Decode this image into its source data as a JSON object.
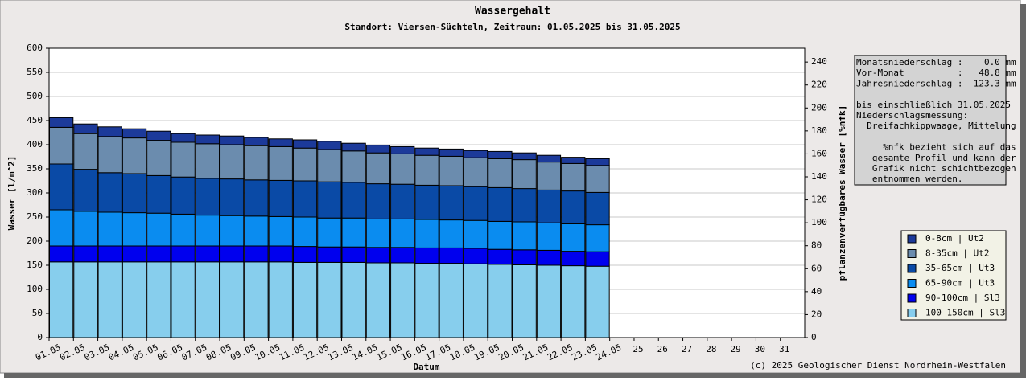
{
  "chart_data": {
    "type": "stacked_bar",
    "title": "Wassergehalt",
    "subtitle": "Standort: Viersen-Süchteln, Zeitraum: 01.05.2025 bis 31.05.2025",
    "xlabel": "Datum",
    "ylabel": "Wasser [l/m^2]",
    "y2label": "pflanzenverfügbares Wasser [%nfk]",
    "categories": [
      "01.05",
      "02.05",
      "03.05",
      "04.05",
      "05.05",
      "06.05",
      "07.05",
      "08.05",
      "09.05",
      "10.05",
      "11.05",
      "12.05",
      "13.05",
      "14.05",
      "15.05",
      "16.05",
      "17.05",
      "18.05",
      "19.05",
      "20.05",
      "21.05",
      "22.05",
      "23.05",
      "24.05",
      "25",
      "26",
      "27",
      "28",
      "29",
      "30",
      "31"
    ],
    "ylim": [
      0,
      600
    ],
    "yticks": [
      0,
      50,
      100,
      150,
      200,
      250,
      300,
      350,
      400,
      450,
      500,
      550,
      600
    ],
    "y2lim": [
      0,
      252
    ],
    "y2ticks": [
      0,
      20,
      40,
      60,
      80,
      100,
      120,
      140,
      160,
      180,
      200,
      220,
      240
    ],
    "grid": true,
    "series": [
      {
        "name": "0-8cm | Ut2",
        "color": "#1c3a9a",
        "values": [
          20,
          20,
          20,
          19,
          19,
          18,
          18,
          18,
          17,
          16,
          17,
          17,
          16,
          16,
          15,
          15,
          15,
          15,
          15,
          14,
          14,
          13,
          14,
          null,
          null,
          null,
          null,
          null,
          null,
          null,
          null
        ]
      },
      {
        "name": "8-35cm | Ut2",
        "color": "#6b8cae",
        "values": [
          76,
          74,
          75,
          74,
          73,
          72,
          72,
          71,
          71,
          70,
          68,
          67,
          65,
          64,
          63,
          62,
          61,
          60,
          60,
          60,
          58,
          57,
          56,
          null,
          null,
          null,
          null,
          null,
          null,
          null,
          null
        ]
      },
      {
        "name": "35-65cm | Ut3",
        "color": "#0a4aa6",
        "values": [
          95,
          87,
          82,
          81,
          78,
          77,
          76,
          76,
          75,
          75,
          75,
          75,
          74,
          73,
          72,
          71,
          71,
          70,
          70,
          69,
          68,
          68,
          67,
          null,
          null,
          null,
          null,
          null,
          null,
          null,
          null
        ]
      },
      {
        "name": "65-90cm | Ut3",
        "color": "#0a8cf0",
        "values": [
          75,
          72,
          70,
          69,
          68,
          66,
          64,
          63,
          62,
          61,
          61,
          60,
          60,
          59,
          59,
          59,
          58,
          58,
          58,
          58,
          57,
          57,
          56,
          null,
          null,
          null,
          null,
          null,
          null,
          null,
          null
        ]
      },
      {
        "name": "90-100cm | Sl3",
        "color": "#0000ee",
        "values": [
          33,
          33,
          33,
          33,
          33,
          33,
          33,
          33,
          33,
          33,
          33,
          32,
          32,
          32,
          32,
          32,
          32,
          32,
          31,
          31,
          31,
          30,
          30,
          null,
          null,
          null,
          null,
          null,
          null,
          null,
          null
        ]
      },
      {
        "name": "100-150cm | Sl3",
        "color": "#87ceed",
        "values": [
          157,
          157,
          157,
          157,
          157,
          157,
          157,
          157,
          157,
          157,
          156,
          156,
          156,
          155,
          155,
          154,
          154,
          153,
          152,
          151,
          150,
          149,
          148,
          null,
          null,
          null,
          null,
          null,
          null,
          null,
          null
        ]
      }
    ]
  },
  "info": {
    "lines": [
      "Monatsniederschlag :    0.0 mm",
      "Vor-Monat          :   48.8 mm",
      "Jahresniederschlag :  123.3 mm",
      "",
      "bis einschließlich 31.05.2025",
      "Niederschlagsmessung:",
      "  Dreifachkippwaage, Mittelung",
      "",
      "     %nfk bezieht sich auf das",
      "   gesamte Profil und kann der",
      "   Grafik nicht schichtbezogen",
      "   entnommen werden."
    ]
  },
  "footer": "(c) 2025 Geologischer Dienst Nordrhein-Westfalen"
}
